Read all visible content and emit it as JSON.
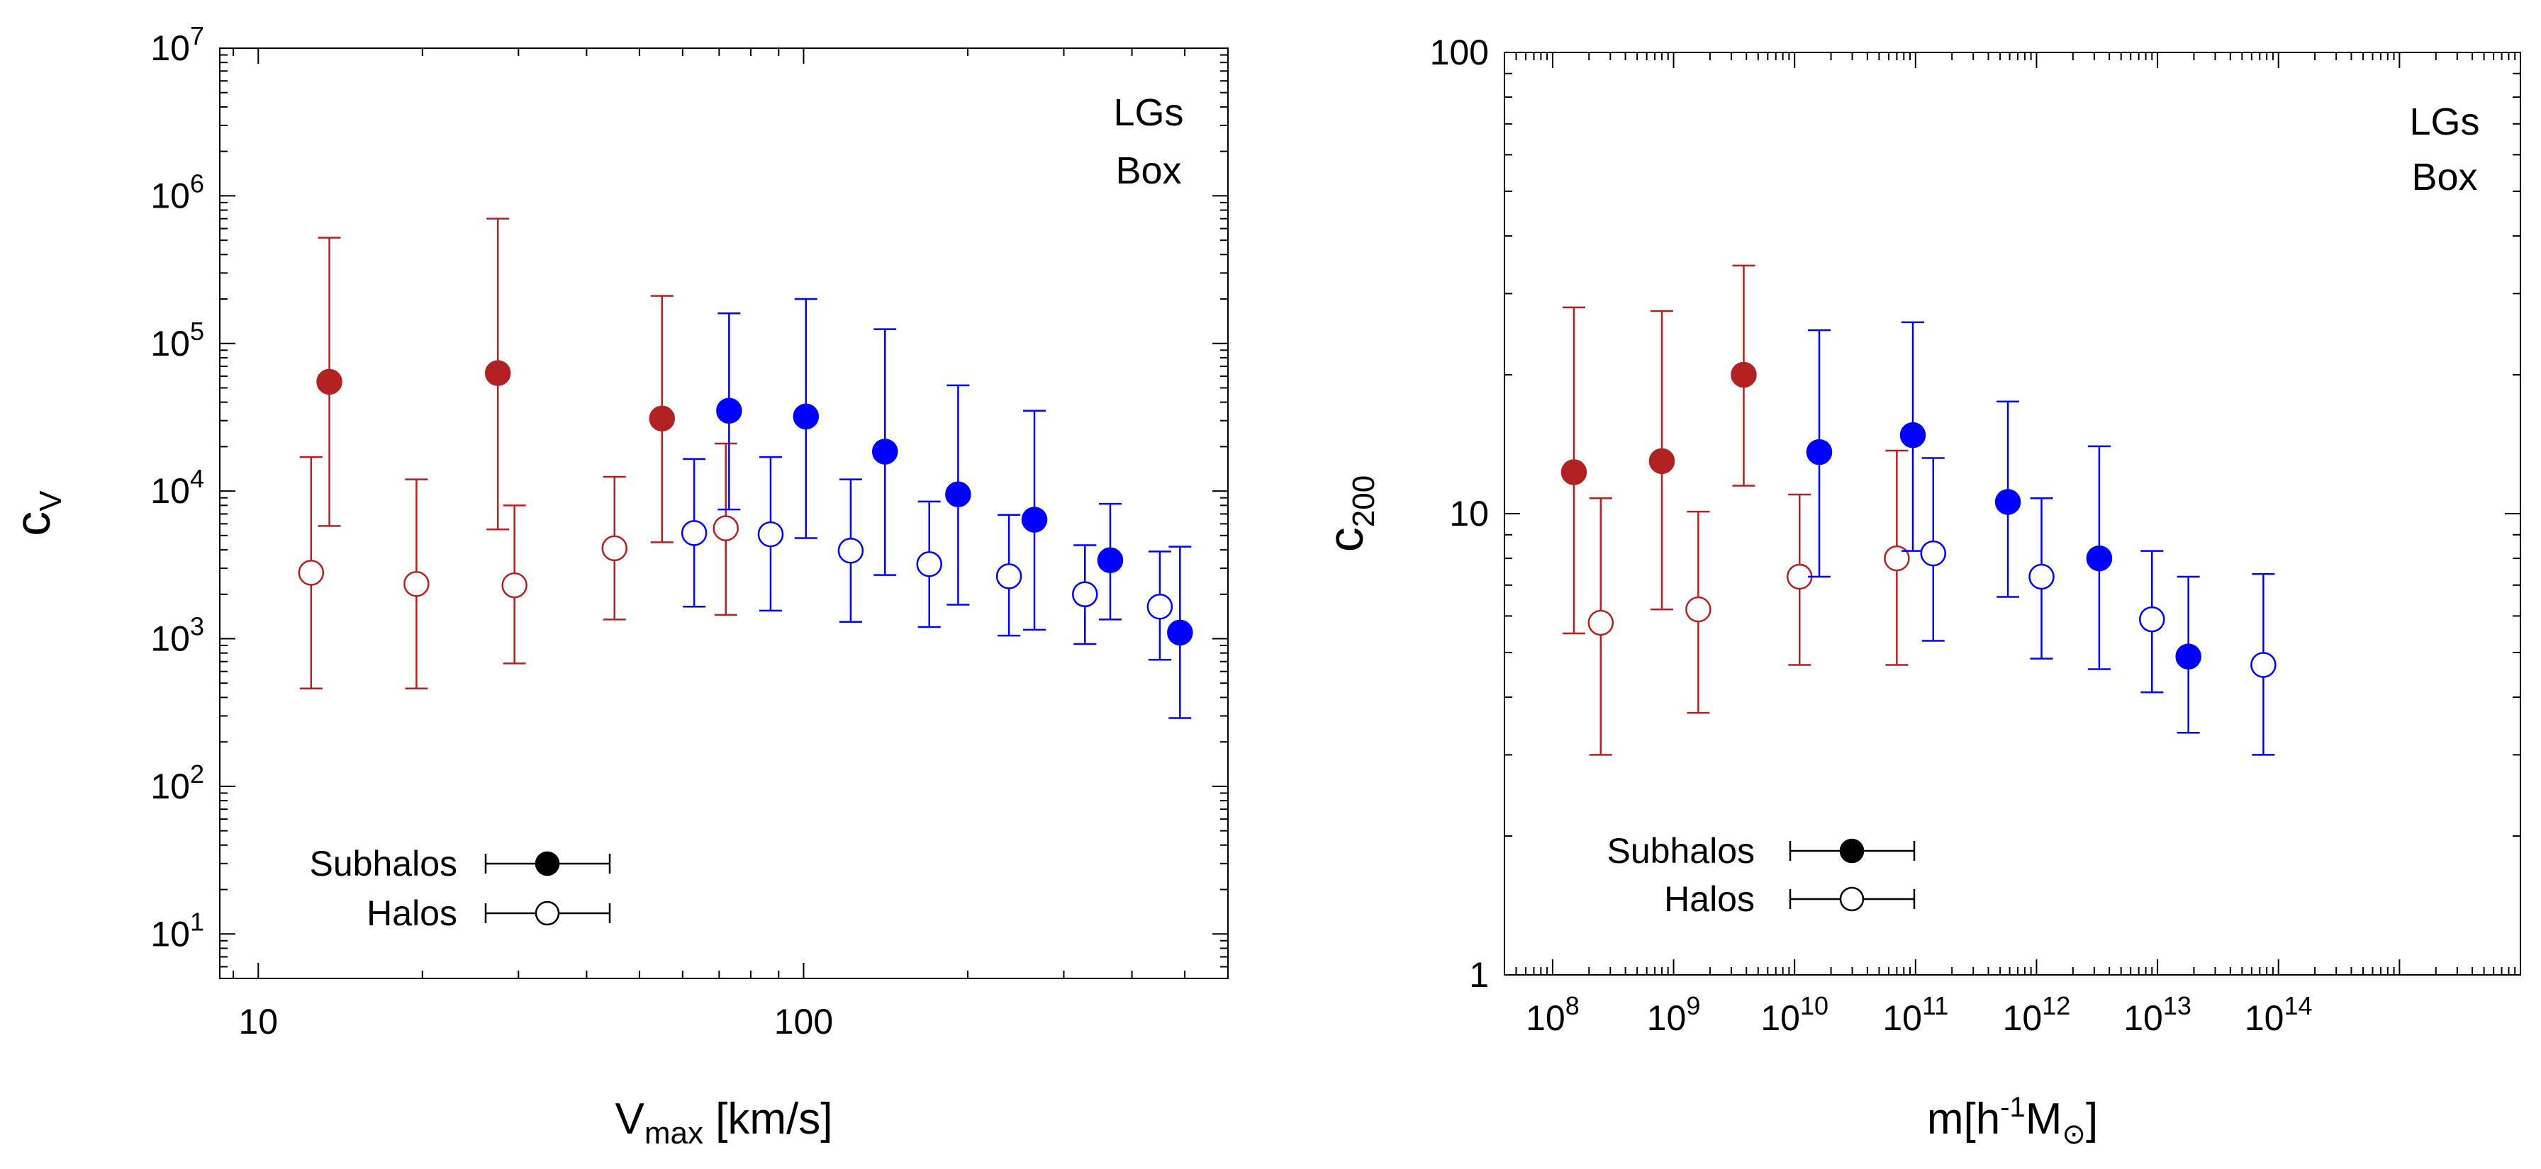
{
  "chart_data": [
    {
      "type": "scatter",
      "id": "left",
      "xlabel": "V",
      "xlabel_sub": "max",
      "xlabel_units": " [km/s]",
      "ylabel": "c",
      "ylabel_sub": "V",
      "x_scale": "log",
      "y_scale": "log",
      "xlim": [
        8.5,
        600
      ],
      "ylim": [
        5,
        10000000
      ],
      "x_ticks": [
        {
          "value": 10,
          "label": "10"
        },
        {
          "value": 100,
          "label": "100"
        }
      ],
      "y_ticks": [
        {
          "value": 10,
          "base": "10",
          "exp": "1"
        },
        {
          "value": 100,
          "base": "10",
          "exp": "2"
        },
        {
          "value": 1000,
          "base": "10",
          "exp": "3"
        },
        {
          "value": 10000,
          "base": "10",
          "exp": "4"
        },
        {
          "value": 100000,
          "base": "10",
          "exp": "5"
        },
        {
          "value": 1000000,
          "base": "10",
          "exp": "6"
        },
        {
          "value": 10000000,
          "base": "10",
          "exp": "7"
        }
      ],
      "groups": [
        {
          "name": "LGs",
          "color": "#b22222"
        },
        {
          "name": "Box",
          "color": "#0000ff"
        }
      ],
      "series": [
        {
          "group": "LGs",
          "kind": "Subhalos",
          "filled": true,
          "color": "#b22222",
          "points": [
            {
              "x": 13.5,
              "y": 55000,
              "ylo": 5800,
              "yhi": 520000
            },
            {
              "x": 27.5,
              "y": 63000,
              "ylo": 5500,
              "yhi": 700000
            },
            {
              "x": 55,
              "y": 31000,
              "ylo": 4500,
              "yhi": 210000
            }
          ]
        },
        {
          "group": "LGs",
          "kind": "Halos",
          "filled": false,
          "color": "#b22222",
          "points": [
            {
              "x": 12.5,
              "y": 2800,
              "ylo": 460,
              "yhi": 17000
            },
            {
              "x": 19.5,
              "y": 2350,
              "ylo": 460,
              "yhi": 12000
            },
            {
              "x": 29.5,
              "y": 2300,
              "ylo": 680,
              "yhi": 8000
            },
            {
              "x": 45,
              "y": 4100,
              "ylo": 1350,
              "yhi": 12500
            },
            {
              "x": 72,
              "y": 5600,
              "ylo": 1450,
              "yhi": 21000
            }
          ]
        },
        {
          "group": "Box",
          "kind": "Subhalos",
          "filled": true,
          "color": "#0000ff",
          "points": [
            {
              "x": 73,
              "y": 35000,
              "ylo": 7500,
              "yhi": 160000
            },
            {
              "x": 101,
              "y": 32000,
              "ylo": 4800,
              "yhi": 200000
            },
            {
              "x": 141,
              "y": 18500,
              "ylo": 2700,
              "yhi": 125000
            },
            {
              "x": 192,
              "y": 9500,
              "ylo": 1700,
              "yhi": 52000
            },
            {
              "x": 265,
              "y": 6400,
              "ylo": 1150,
              "yhi": 35000
            },
            {
              "x": 365,
              "y": 3400,
              "ylo": 1350,
              "yhi": 8200
            },
            {
              "x": 490,
              "y": 1100,
              "ylo": 290,
              "yhi": 4200
            }
          ]
        },
        {
          "group": "Box",
          "kind": "Halos",
          "filled": false,
          "color": "#0000ff",
          "points": [
            {
              "x": 63,
              "y": 5200,
              "ylo": 1650,
              "yhi": 16500
            },
            {
              "x": 87,
              "y": 5100,
              "ylo": 1550,
              "yhi": 17000
            },
            {
              "x": 122,
              "y": 3950,
              "ylo": 1300,
              "yhi": 12000
            },
            {
              "x": 170,
              "y": 3200,
              "ylo": 1200,
              "yhi": 8500
            },
            {
              "x": 238,
              "y": 2650,
              "ylo": 1050,
              "yhi": 6900
            },
            {
              "x": 328,
              "y": 2000,
              "ylo": 920,
              "yhi": 4300
            },
            {
              "x": 450,
              "y": 1650,
              "ylo": 720,
              "yhi": 3900
            }
          ]
        }
      ],
      "legend_markers": [
        {
          "label": "Subhalos",
          "filled": true
        },
        {
          "label": "Halos",
          "filled": false
        }
      ]
    },
    {
      "type": "scatter",
      "id": "right",
      "xlabel": "m[h",
      "xlabel_sup": "-1",
      "xlabel_after": "M",
      "xlabel_sub": "⊙",
      "xlabel_end": "]",
      "ylabel": "c",
      "ylabel_sub": "200",
      "x_scale": "log",
      "y_scale": "log",
      "xlim": [
        40000000,
        10000000000000000
      ],
      "ylim": [
        1,
        100
      ],
      "x_ticks": [
        {
          "value": 100000000,
          "base": "10",
          "exp": "8"
        },
        {
          "value": 1000000000,
          "base": "10",
          "exp": "9"
        },
        {
          "value": 10000000000,
          "base": "10",
          "exp": "10"
        },
        {
          "value": 100000000000,
          "base": "10",
          "exp": "11"
        },
        {
          "value": 1000000000000,
          "base": "10",
          "exp": "12"
        },
        {
          "value": 10000000000000,
          "base": "10",
          "exp": "13"
        },
        {
          "value": 100000000000000,
          "base": "10",
          "exp": "14"
        }
      ],
      "y_ticks": [
        {
          "value": 1,
          "label": "1"
        },
        {
          "value": 10,
          "label": "10"
        },
        {
          "value": 100,
          "label": "100"
        }
      ],
      "groups": [
        {
          "name": "LGs",
          "color": "#b22222"
        },
        {
          "name": "Box",
          "color": "#0000ff"
        }
      ],
      "series": [
        {
          "group": "LGs",
          "kind": "Subhalos",
          "filled": true,
          "color": "#b22222",
          "points": [
            {
              "x": 150000000,
              "y": 12.3,
              "ylo": 5.5,
              "yhi": 28
            },
            {
              "x": 800000000,
              "y": 13,
              "ylo": 6.2,
              "yhi": 27.5
            },
            {
              "x": 3800000000,
              "y": 20,
              "ylo": 11.5,
              "yhi": 34.5
            }
          ]
        },
        {
          "group": "LGs",
          "kind": "Halos",
          "filled": false,
          "color": "#b22222",
          "points": [
            {
              "x": 250000000,
              "y": 5.8,
              "ylo": 3,
              "yhi": 10.8
            },
            {
              "x": 1600000000,
              "y": 6.2,
              "ylo": 3.7,
              "yhi": 10.1
            },
            {
              "x": 11000000000,
              "y": 7.3,
              "ylo": 4.7,
              "yhi": 11
            },
            {
              "x": 70000000000,
              "y": 8,
              "ylo": 4.7,
              "yhi": 13.7
            }
          ]
        },
        {
          "group": "Box",
          "kind": "Subhalos",
          "filled": true,
          "color": "#0000ff",
          "points": [
            {
              "x": 16000000000,
              "y": 13.6,
              "ylo": 7.3,
              "yhi": 25
            },
            {
              "x": 95000000000,
              "y": 14.8,
              "ylo": 8.3,
              "yhi": 26
            },
            {
              "x": 580000000000,
              "y": 10.6,
              "ylo": 6.6,
              "yhi": 17.5
            },
            {
              "x": 3300000000000,
              "y": 8,
              "ylo": 4.6,
              "yhi": 14
            },
            {
              "x": 18000000000000,
              "y": 4.9,
              "ylo": 3.35,
              "yhi": 7.3
            }
          ]
        },
        {
          "group": "Box",
          "kind": "Halos",
          "filled": false,
          "color": "#0000ff",
          "points": [
            {
              "x": 140000000000,
              "y": 8.2,
              "ylo": 5.3,
              "yhi": 13.2
            },
            {
              "x": 1100000000000,
              "y": 7.3,
              "ylo": 4.85,
              "yhi": 10.8
            },
            {
              "x": 9000000000000,
              "y": 5.9,
              "ylo": 4.1,
              "yhi": 8.3
            },
            {
              "x": 75000000000000,
              "y": 4.7,
              "ylo": 3,
              "yhi": 7.4
            }
          ]
        }
      ],
      "legend_markers": [
        {
          "label": "Subhalos",
          "filled": true
        },
        {
          "label": "Halos",
          "filled": false
        }
      ]
    }
  ]
}
